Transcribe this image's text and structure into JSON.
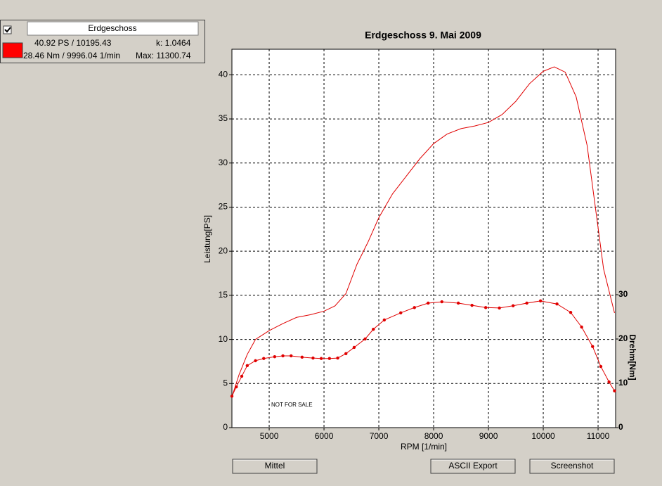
{
  "legend_panel": {
    "checked": true,
    "name": "Erdgeschoss",
    "power": "40.92 PS / 10195.43",
    "k": "k: 1.0464",
    "torque": "28.46 Nm / 9996.04 1/min",
    "max": "Max: 11300.74",
    "color": "#ff0000"
  },
  "chart_data": {
    "type": "line",
    "title": "Erdgeschoss 9. Mai 2009",
    "x_label": "RPM [1/min]",
    "y_label": "Leistung[PS]",
    "y2_label": "Drehm[Nm]",
    "annotation": "NOT FOR SALE",
    "xlim": [
      4320,
      11320
    ],
    "xticks": [
      5000,
      6000,
      7000,
      8000,
      9000,
      10000,
      11000
    ],
    "ylim": [
      0,
      42.9
    ],
    "yticks": [
      0,
      5,
      10,
      15,
      20,
      25,
      30,
      35,
      40
    ],
    "y2lim": [
      0,
      85.4
    ],
    "y2ticks": [
      0,
      10,
      20,
      30
    ],
    "grid": true,
    "series": [
      {
        "color": "#e00000",
        "markers": false,
        "x": [
          4320,
          4450,
          4600,
          4750,
          5000,
          5250,
          5500,
          5750,
          6000,
          6200,
          6400,
          6600,
          6800,
          7000,
          7250,
          7500,
          7750,
          8000,
          8250,
          8500,
          8750,
          9000,
          9250,
          9500,
          9750,
          10000,
          10200,
          10400,
          10600,
          10800,
          10950,
          11100,
          11300
        ],
        "values": [
          3.5,
          6,
          8.3,
          10,
          11,
          11.8,
          12.5,
          12.8,
          13.2,
          13.8,
          15.2,
          18.5,
          21,
          23.8,
          26.5,
          28.5,
          30.5,
          32.2,
          33.3,
          33.9,
          34.2,
          34.6,
          35.5,
          37,
          39,
          40.4,
          40.9,
          40.3,
          37.5,
          32,
          25,
          18,
          13
        ]
      },
      {
        "color": "#e00000",
        "markers": true,
        "axis": "y2",
        "x": [
          4320,
          4400,
          4500,
          4600,
          4750,
          4900,
          5100,
          5250,
          5400,
          5600,
          5800,
          5950,
          6100,
          6250,
          6400,
          6550,
          6750,
          6900,
          7100,
          7400,
          7650,
          7900,
          8150,
          8450,
          8700,
          8950,
          9200,
          9450,
          9700,
          9950,
          10250,
          10500,
          10700,
          10900,
          11050,
          11200,
          11300
        ],
        "values": [
          7.1,
          9.2,
          11.6,
          14,
          15.1,
          15.6,
          16,
          16.2,
          16.2,
          15.9,
          15.7,
          15.6,
          15.6,
          15.7,
          16.7,
          18.1,
          20,
          22.2,
          24.3,
          25.9,
          27.1,
          28.1,
          28.4,
          28.1,
          27.6,
          27.1,
          27,
          27.5,
          28.1,
          28.6,
          27.9,
          26,
          22.7,
          18.3,
          13.8,
          10.3,
          8.3
        ]
      }
    ]
  },
  "buttons": [
    "Mittel",
    "ASCII Export",
    "Screenshot"
  ]
}
